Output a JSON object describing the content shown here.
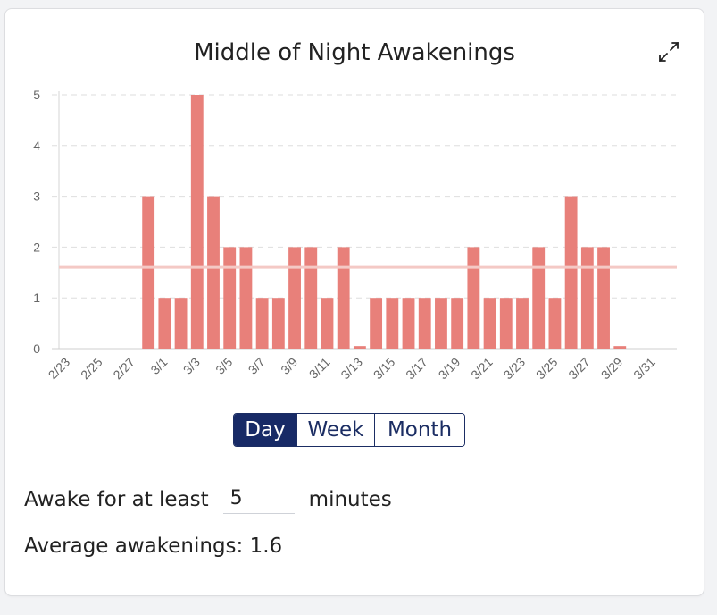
{
  "card": {
    "title": "Middle of Night Awakenings",
    "expand_icon": "expand-arrows-icon"
  },
  "chart_data": {
    "type": "bar",
    "categories": [
      "2/23",
      "2/24",
      "2/25",
      "2/26",
      "2/27",
      "2/28",
      "3/1",
      "3/2",
      "3/3",
      "3/4",
      "3/5",
      "3/6",
      "3/7",
      "3/8",
      "3/9",
      "3/10",
      "3/11",
      "3/12",
      "3/13",
      "3/14",
      "3/15",
      "3/16",
      "3/17",
      "3/18",
      "3/19",
      "3/20",
      "3/21",
      "3/22",
      "3/23",
      "3/24",
      "3/25",
      "3/26",
      "3/27",
      "3/28",
      "3/29",
      "3/30",
      "3/31",
      "4/1"
    ],
    "tick_labels": [
      "2/23",
      "2/25",
      "2/27",
      "3/1",
      "3/3",
      "3/5",
      "3/7",
      "3/9",
      "3/11",
      "3/13",
      "3/15",
      "3/17",
      "3/19",
      "3/21",
      "3/23",
      "3/25",
      "3/27",
      "3/29",
      "3/31"
    ],
    "values": [
      0,
      0,
      0,
      0,
      0,
      3,
      1,
      1,
      5,
      3,
      2,
      2,
      1,
      1,
      2,
      2,
      1,
      2,
      0.05,
      1,
      1,
      1,
      1,
      1,
      1,
      2,
      1,
      1,
      1,
      2,
      1,
      3,
      2,
      2,
      0.05,
      0,
      0,
      0
    ],
    "average": 1.6,
    "ylim": [
      0,
      5
    ],
    "yticks": [
      0,
      1,
      2,
      3,
      4,
      5
    ],
    "grid": true,
    "bar_color": "#e8807a",
    "average_line_color": "#f4c9c5"
  },
  "controls": {
    "period_options": [
      "Day",
      "Week",
      "Month"
    ],
    "selected_period": "Day",
    "awake_prefix": "Awake for at least",
    "awake_value": "5",
    "awake_suffix": "minutes",
    "average_label": "Average awakenings: 1.6"
  },
  "colors": {
    "accent": "#172a66"
  }
}
